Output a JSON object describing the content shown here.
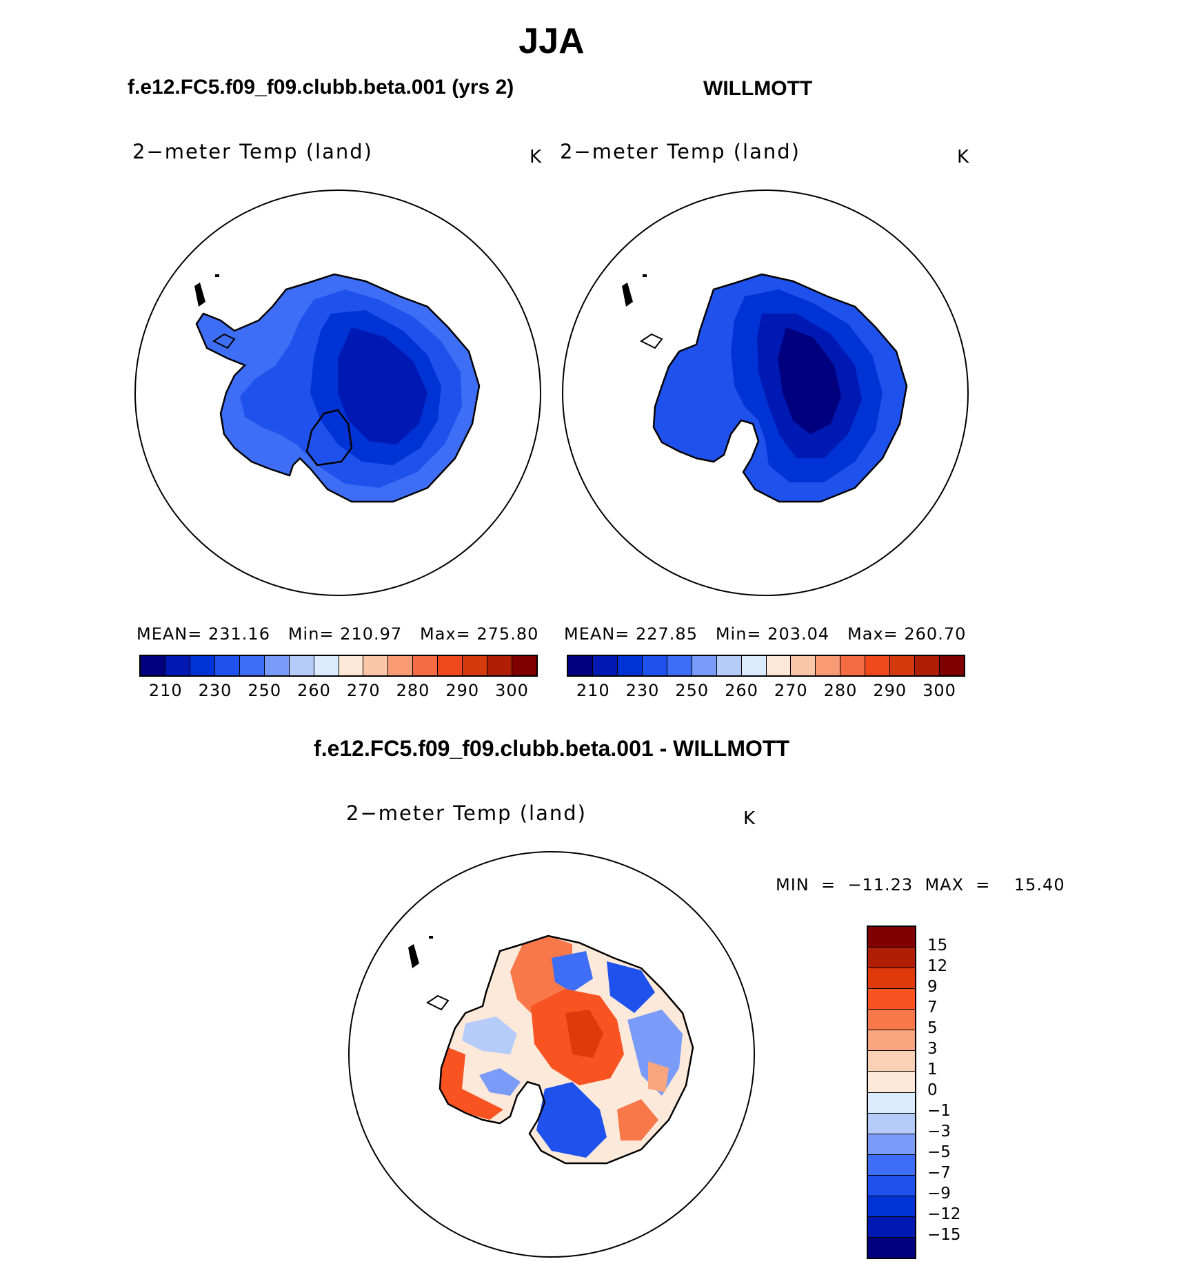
{
  "figure_title": "JJA",
  "left_panel": {
    "case": "f.e12.FC5.f09_f09.clubb.beta.001 (yrs 2)",
    "variable": "2−meter Temp (land)",
    "unit": "K",
    "stats": "MEAN= 231.16   Min= 210.97   Max= 275.80"
  },
  "right_panel": {
    "case": "WILLMOTT",
    "variable": "2−meter Temp (land)",
    "unit": "K",
    "stats": "MEAN= 227.85   Min= 203.04   Max= 260.70"
  },
  "diff_panel": {
    "case": "f.e12.FC5.f09_f09.clubb.beta.001 - WILLMOTT",
    "variable": "2−meter Temp (land)",
    "unit": "K",
    "minmax": "MIN  =  −11.23  MAX  =    15.40"
  },
  "abs_colorbar": {
    "colors": [
      "#00007f",
      "#0019b3",
      "#0033d6",
      "#1f52ed",
      "#3d6ef5",
      "#7a9cf8",
      "#b5ccfb",
      "#dbebfd",
      "#fde7d6",
      "#fbc5a8",
      "#f89a73",
      "#f56b43",
      "#f04a1c",
      "#d43a0d",
      "#b01f05",
      "#7f0000"
    ],
    "labels": [
      "210",
      "230",
      "250",
      "260",
      "270",
      "280",
      "290",
      "300"
    ]
  },
  "diff_colorbar": {
    "colors": [
      "#7f0000",
      "#b01f05",
      "#e03a0a",
      "#fa5322",
      "#f8784a",
      "#f9a57f",
      "#fbd1b6",
      "#fde9d9",
      "#dbebfd",
      "#b5ccfb",
      "#7a9cf8",
      "#3d6ef5",
      "#1f52ed",
      "#0033d6",
      "#0019b3",
      "#00007f"
    ],
    "labels": [
      "15",
      "12",
      "9",
      "7",
      "5",
      "3",
      "1",
      "0",
      "−1",
      "−3",
      "−5",
      "−7",
      "−9",
      "−12",
      "−15"
    ]
  },
  "map_colors": {
    "land_outline": "#000000",
    "model_outer": "#3d6ef5",
    "model_mid": "#1f52ed",
    "model_inner": "#0033d6",
    "model_core": "#0019b3",
    "obs_outer": "#1f52ed",
    "obs_mid": "#0033d6",
    "obs_inner": "#0019b3",
    "obs_core": "#00007f"
  }
}
